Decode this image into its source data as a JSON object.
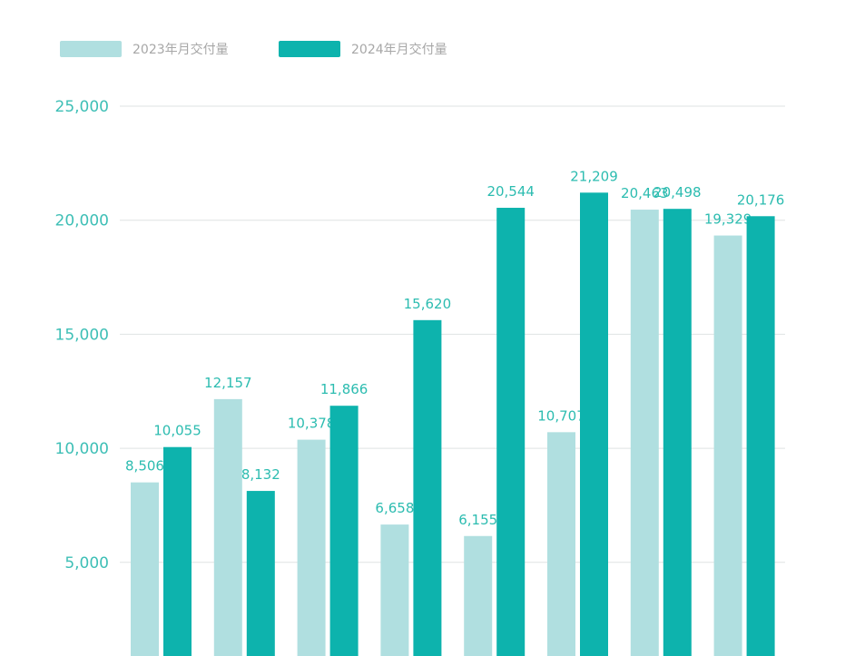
{
  "colors": {
    "s2023": "#b0dfe0",
    "s2024": "#0db3ad",
    "tick": "#3ebfb6",
    "label": "#2cbcb0",
    "grid": "#dfe3e3"
  },
  "chart_data": {
    "type": "bar",
    "categories": [
      "",
      "",
      "",
      "",
      "",
      "",
      "",
      ""
    ],
    "series": [
      {
        "name": "2023年月交付量",
        "values": [
          8506,
          12157,
          10378,
          6658,
          6155,
          10707,
          20463,
          19329
        ],
        "labels": [
          "8,506",
          "12,157",
          "10,378",
          "6,658",
          "6,155",
          "10,707",
          "20,463",
          "19,329"
        ]
      },
      {
        "name": "2024年月交付量",
        "values": [
          10055,
          8132,
          11866,
          15620,
          20544,
          21209,
          20498,
          20176
        ],
        "labels": [
          "10,055",
          "8,132",
          "11,866",
          "15,620",
          "20,544",
          "21,209",
          "20,498",
          "20,176"
        ]
      }
    ],
    "yticks": [
      5000,
      10000,
      15000,
      20000,
      25000
    ],
    "ytick_labels": [
      "5,000",
      "10,000",
      "15,000",
      "20,000",
      "25,000"
    ],
    "ylim": [
      0,
      25000
    ],
    "grid": true,
    "legend": "top-left"
  }
}
